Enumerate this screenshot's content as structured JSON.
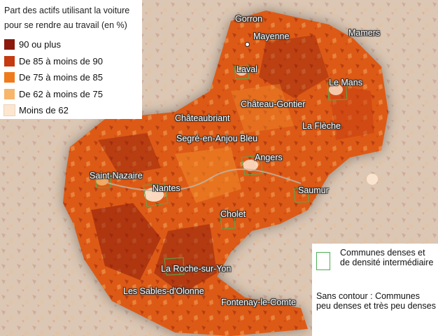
{
  "legend": {
    "title": "Part des actifs utilisant la voiture pour se rendre au travail (en %)",
    "classes": [
      {
        "label": "90 ou plus",
        "color": "#8b1a0c"
      },
      {
        "label": "De 85 à moins de 90",
        "color": "#c53a10"
      },
      {
        "label": "De 75 à moins de 85",
        "color": "#ef7a1c"
      },
      {
        "label": "De 62 à moins de 75",
        "color": "#f6b66b"
      },
      {
        "label": "Moins de 62",
        "color": "#fde6d0"
      }
    ]
  },
  "legend_contours": {
    "dense_label": "Communes denses et de densité intermédiaire",
    "dense_color": "#4caf50",
    "sparse_label": "Sans contour : Communes peu denses et très peu denses"
  },
  "cities": [
    {
      "name": "Gorron"
    },
    {
      "name": "Mayenne"
    },
    {
      "name": "Mamers"
    },
    {
      "name": "Laval"
    },
    {
      "name": "Le Mans"
    },
    {
      "name": "Château-Gontier"
    },
    {
      "name": "Châteaubriant"
    },
    {
      "name": "La Flèche"
    },
    {
      "name": "Segré-en-Anjou Bleu"
    },
    {
      "name": "Angers"
    },
    {
      "name": "Saint-Nazaire"
    },
    {
      "name": "Nantes"
    },
    {
      "name": "Saumur"
    },
    {
      "name": "Cholet"
    },
    {
      "name": "La Roche-sur-Yon"
    },
    {
      "name": "Les Sables-d'Olonne"
    },
    {
      "name": "Fontenay-le-Comte"
    }
  ]
}
